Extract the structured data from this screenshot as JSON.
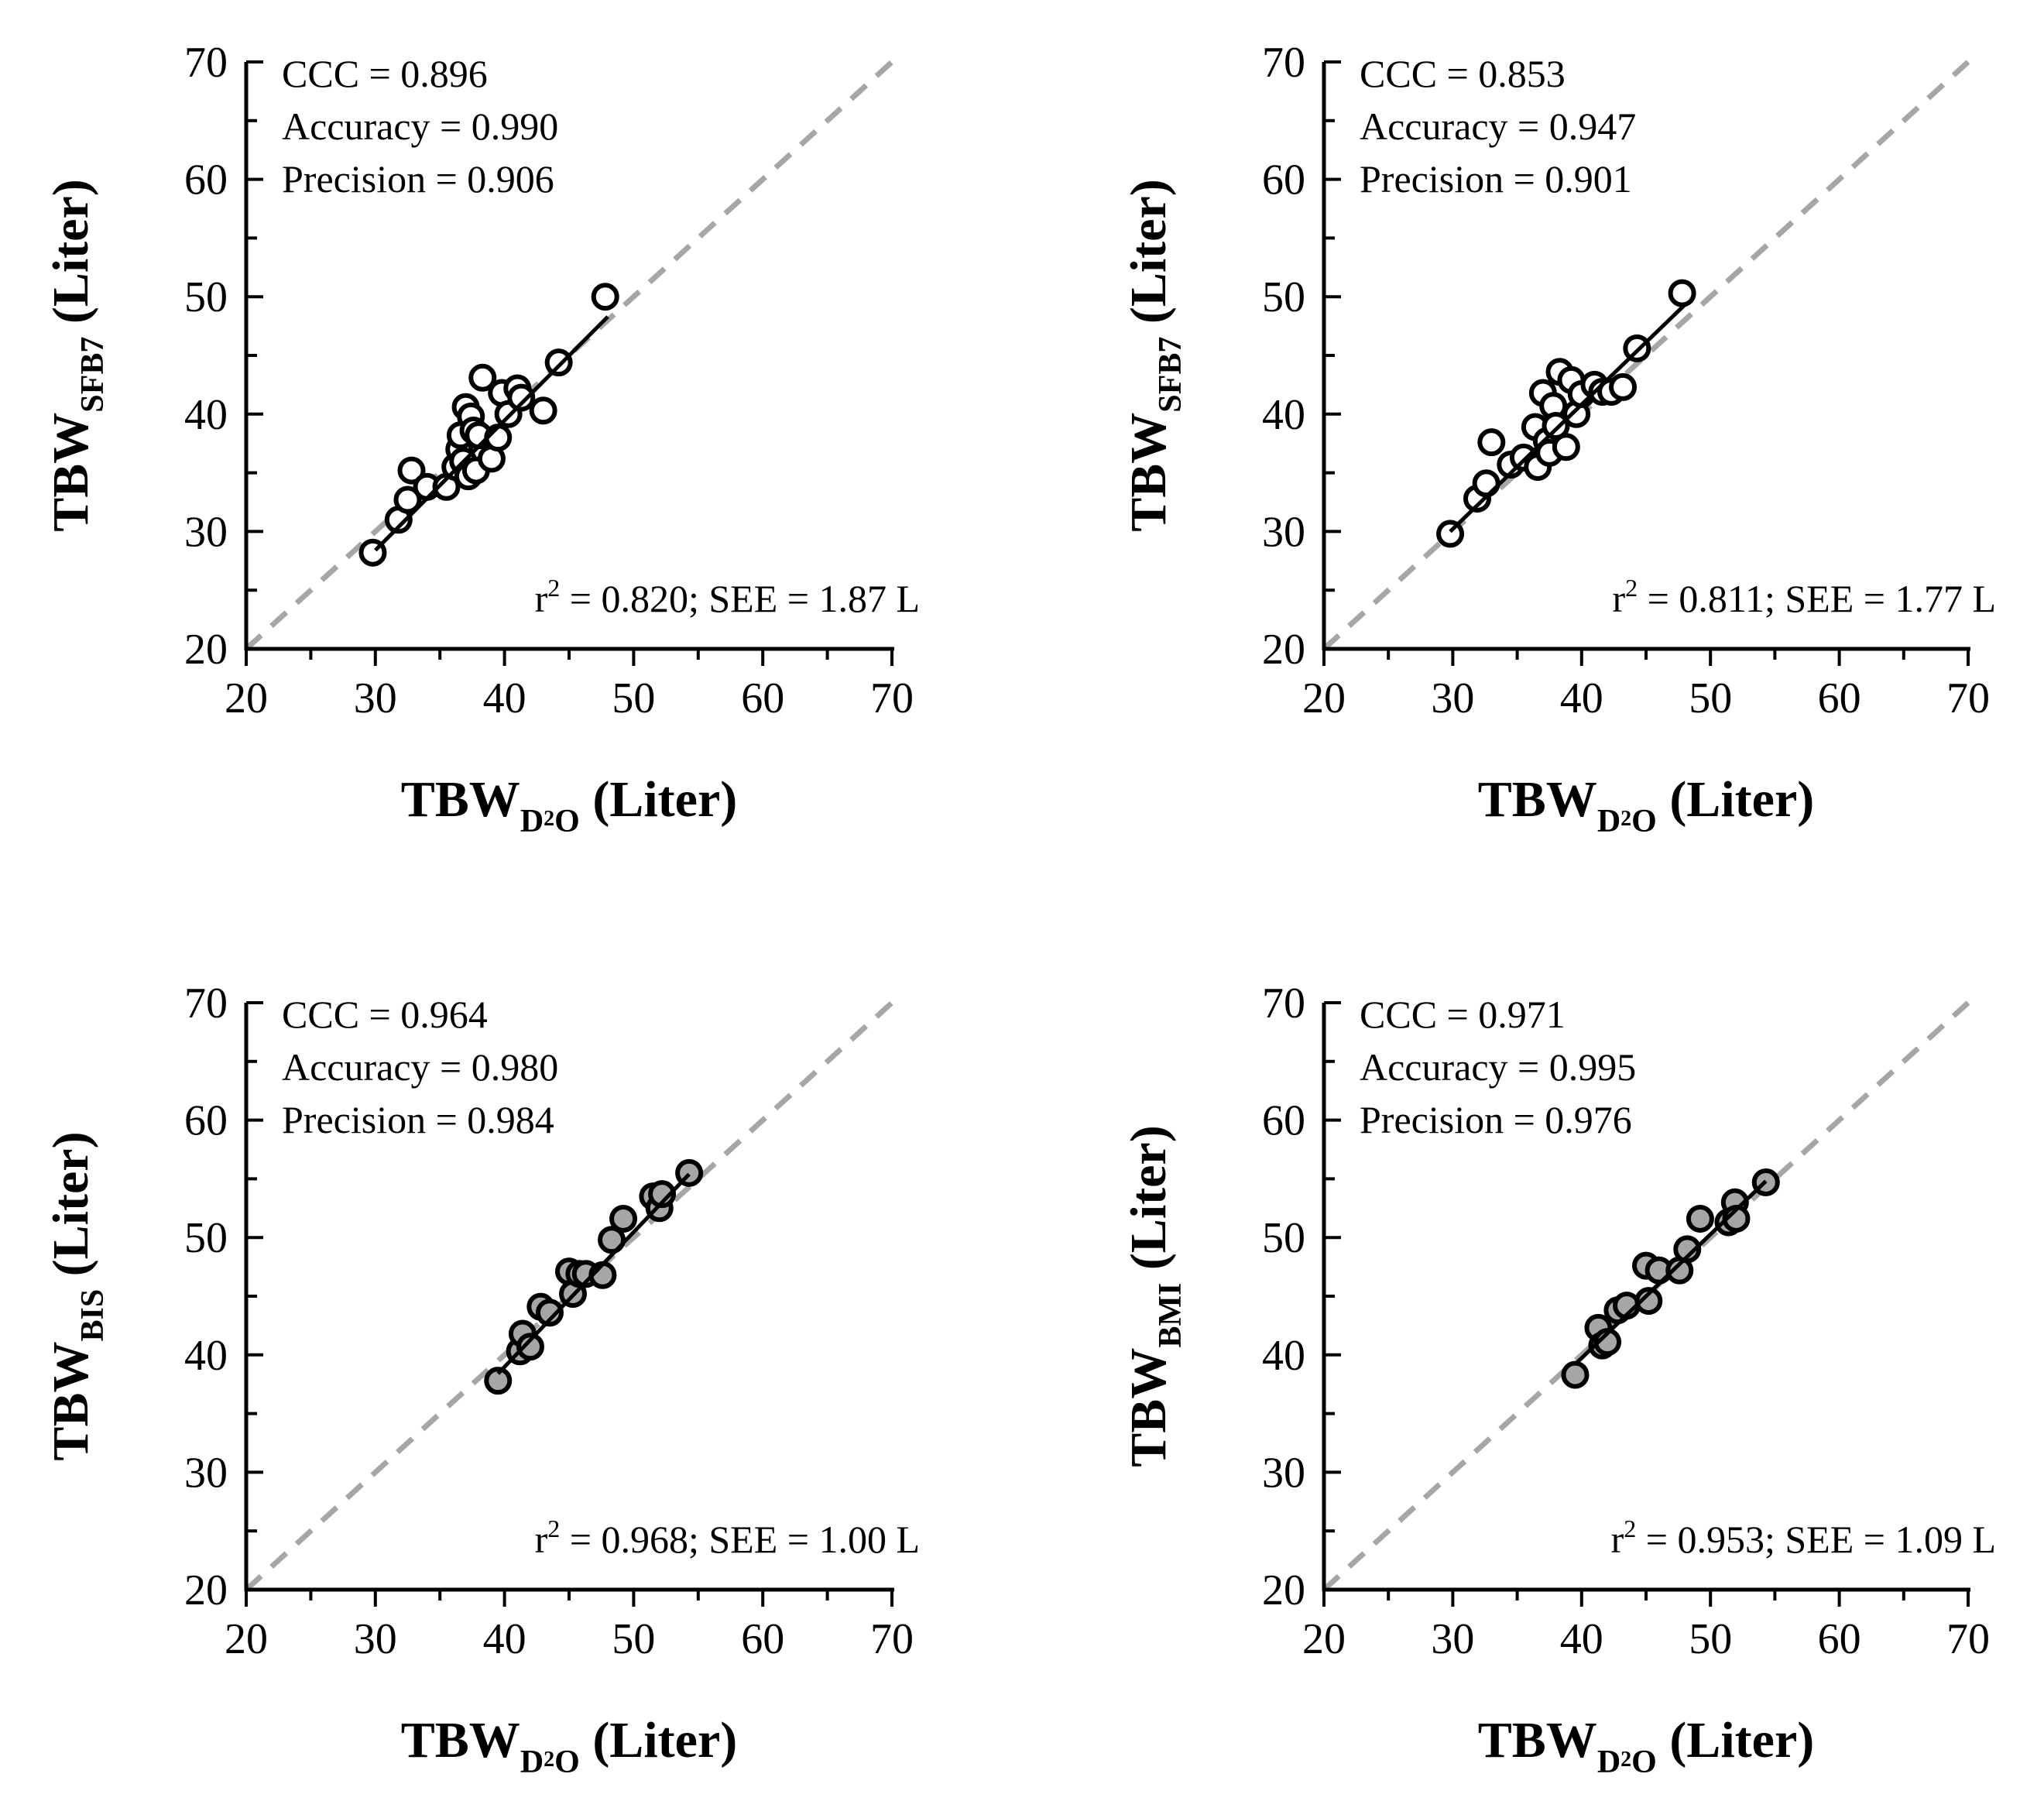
{
  "chart_data": [
    {
      "type": "scatter",
      "panel": "top-left",
      "xlabel": {
        "main": "TBW",
        "sub": "D",
        "sub2": "2",
        "sub3": "O",
        "unit": "(Liter)"
      },
      "ylabel": {
        "main": "TBW",
        "sub": "SFB7",
        "unit": "(Liter)"
      },
      "xlim": [
        20,
        70
      ],
      "ylim": [
        20,
        70
      ],
      "xticks": [
        "20",
        "30",
        "40",
        "50",
        "60",
        "70"
      ],
      "yticks": [
        "20",
        "30",
        "40",
        "50",
        "60",
        "70"
      ],
      "stats": [
        "CCC = 0.896",
        "Accuracy = 0.990",
        "Precision = 0.906"
      ],
      "r2_prefix": "r",
      "r2_sup": "2",
      "r2_rest": " = 0.820; SEE = 1.87 L",
      "marker_fill": "#ffffff",
      "regression": {
        "x": [
          30,
          48
        ],
        "y": [
          28.4,
          48.3
        ]
      },
      "identity_line": {
        "x": [
          20,
          70
        ],
        "y": [
          20,
          70
        ],
        "color": "#a6a6a6",
        "style": "dashed"
      },
      "points": [
        [
          29.8,
          28.2
        ],
        [
          31.8,
          31.0
        ],
        [
          32.5,
          32.7
        ],
        [
          32.8,
          35.2
        ],
        [
          34.0,
          33.8
        ],
        [
          35.5,
          33.8
        ],
        [
          36.2,
          35.5
        ],
        [
          36.5,
          37.0
        ],
        [
          36.6,
          38.2
        ],
        [
          36.8,
          36.0
        ],
        [
          37.0,
          40.6
        ],
        [
          37.2,
          34.7
        ],
        [
          37.4,
          39.8
        ],
        [
          37.6,
          38.6
        ],
        [
          37.8,
          35.2
        ],
        [
          38.0,
          38.2
        ],
        [
          38.3,
          43.1
        ],
        [
          39.0,
          36.2
        ],
        [
          39.5,
          38.0
        ],
        [
          39.8,
          41.8
        ],
        [
          40.3,
          40.0
        ],
        [
          41.0,
          42.2
        ],
        [
          41.3,
          41.4
        ],
        [
          43.0,
          40.3
        ],
        [
          44.2,
          44.4
        ],
        [
          47.8,
          50.0
        ]
      ]
    },
    {
      "type": "scatter",
      "panel": "top-right",
      "xlabel": {
        "main": "TBW",
        "sub": "D",
        "sub2": "2",
        "sub3": "O",
        "unit": "(Liter)"
      },
      "ylabel": {
        "main": "TBW",
        "sub": "SFB7",
        "unit": "(Liter)"
      },
      "xlim": [
        20,
        70
      ],
      "ylim": [
        20,
        70
      ],
      "xticks": [
        "20",
        "30",
        "40",
        "50",
        "60",
        "70"
      ],
      "yticks": [
        "20",
        "30",
        "40",
        "50",
        "60",
        "70"
      ],
      "stats": [
        "CCC = 0.853",
        "Accuracy = 0.947",
        "Precision = 0.901"
      ],
      "r2_prefix": "r",
      "r2_sup": "2",
      "r2_rest": " = 0.811; SEE = 1.77 L",
      "marker_fill": "#ffffff",
      "regression": {
        "x": [
          29.8,
          48
        ],
        "y": [
          30.0,
          49.3
        ]
      },
      "identity_line": {
        "x": [
          20,
          70
        ],
        "y": [
          20,
          70
        ],
        "color": "#a6a6a6",
        "style": "dashed"
      },
      "points": [
        [
          29.8,
          29.8
        ],
        [
          31.9,
          32.8
        ],
        [
          32.6,
          34.1
        ],
        [
          33.0,
          37.6
        ],
        [
          34.5,
          35.7
        ],
        [
          35.5,
          36.3
        ],
        [
          36.4,
          38.9
        ],
        [
          36.6,
          35.5
        ],
        [
          37.0,
          41.8
        ],
        [
          37.3,
          37.7
        ],
        [
          37.5,
          36.7
        ],
        [
          37.8,
          40.7
        ],
        [
          38.0,
          39.0
        ],
        [
          38.3,
          43.6
        ],
        [
          38.8,
          37.2
        ],
        [
          39.2,
          42.9
        ],
        [
          39.6,
          40.0
        ],
        [
          40.0,
          41.7
        ],
        [
          41.0,
          42.5
        ],
        [
          41.6,
          41.9
        ],
        [
          42.3,
          41.9
        ],
        [
          43.2,
          42.3
        ],
        [
          44.3,
          45.6
        ],
        [
          47.8,
          50.3
        ]
      ]
    },
    {
      "type": "scatter",
      "panel": "bottom-left",
      "xlabel": {
        "main": "TBW",
        "sub": "D",
        "sub2": "2",
        "sub3": "O",
        "unit": "(Liter)"
      },
      "ylabel": {
        "main": "TBW",
        "sub": "BIS",
        "unit": "(Liter)"
      },
      "xlim": [
        20,
        70
      ],
      "ylim": [
        20,
        70
      ],
      "xticks": [
        "20",
        "30",
        "40",
        "50",
        "60",
        "70"
      ],
      "yticks": [
        "20",
        "30",
        "40",
        "50",
        "60",
        "70"
      ],
      "stats": [
        "CCC = 0.964",
        "Accuracy = 0.980",
        "Precision = 0.984"
      ],
      "r2_prefix": "r",
      "r2_sup": "2",
      "r2_rest": " = 0.968; SEE = 1.00 L",
      "marker_fill": "#a6a6a6",
      "regression": {
        "x": [
          39.5,
          54.3
        ],
        "y": [
          38.4,
          55.4
        ]
      },
      "identity_line": {
        "x": [
          20,
          70
        ],
        "y": [
          20,
          70
        ],
        "color": "#a6a6a6",
        "style": "dashed"
      },
      "points": [
        [
          39.5,
          37.8
        ],
        [
          41.2,
          40.3
        ],
        [
          41.4,
          41.8
        ],
        [
          42.0,
          40.7
        ],
        [
          42.8,
          44.1
        ],
        [
          43.5,
          43.6
        ],
        [
          45.0,
          47.1
        ],
        [
          45.3,
          45.2
        ],
        [
          45.8,
          46.9
        ],
        [
          46.3,
          46.9
        ],
        [
          47.6,
          46.8
        ],
        [
          48.3,
          49.8
        ],
        [
          49.2,
          51.6
        ],
        [
          51.5,
          53.5
        ],
        [
          52.0,
          52.5
        ],
        [
          52.2,
          53.7
        ],
        [
          54.3,
          55.5
        ]
      ]
    },
    {
      "type": "scatter",
      "panel": "bottom-right",
      "xlabel": {
        "main": "TBW",
        "sub": "D",
        "sub2": "2",
        "sub3": "O",
        "unit": "(Liter)"
      },
      "ylabel": {
        "main": "TBW",
        "sub": "BMI",
        "unit": "(Liter)"
      },
      "xlim": [
        20,
        70
      ],
      "ylim": [
        20,
        70
      ],
      "xticks": [
        "20",
        "30",
        "40",
        "50",
        "60",
        "70"
      ],
      "yticks": [
        "20",
        "30",
        "40",
        "50",
        "60",
        "70"
      ],
      "stats": [
        "CCC = 0.971",
        "Accuracy = 0.995",
        "Precision = 0.976"
      ],
      "r2_prefix": "r",
      "r2_sup": "2",
      "r2_rest": " = 0.953; SEE = 1.09 L",
      "marker_fill": "#a6a6a6",
      "regression": {
        "x": [
          39.5,
          54.3
        ],
        "y": [
          39.2,
          54.8
        ]
      },
      "identity_line": {
        "x": [
          20,
          70
        ],
        "y": [
          20,
          70
        ],
        "color": "#a6a6a6",
        "style": "dashed"
      },
      "points": [
        [
          39.5,
          38.3
        ],
        [
          41.3,
          42.3
        ],
        [
          41.6,
          40.8
        ],
        [
          42.0,
          41.1
        ],
        [
          42.8,
          43.8
        ],
        [
          43.5,
          44.2
        ],
        [
          45.0,
          47.6
        ],
        [
          45.2,
          44.6
        ],
        [
          46.0,
          47.2
        ],
        [
          47.6,
          47.2
        ],
        [
          48.2,
          49.0
        ],
        [
          49.2,
          51.6
        ],
        [
          51.4,
          51.3
        ],
        [
          51.9,
          53.0
        ],
        [
          52.0,
          51.6
        ],
        [
          54.3,
          54.7
        ]
      ]
    }
  ]
}
